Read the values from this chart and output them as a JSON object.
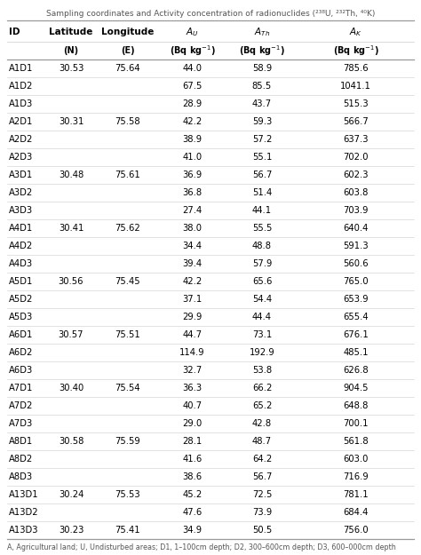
{
  "title": "Sampling coordinates and Activity concentration of radionuclides (²³⁸U, ²³²Th, ⁴⁰K)",
  "rows": [
    [
      "A1D1",
      "30.53",
      "75.64",
      "44.0",
      "58.9",
      "785.6"
    ],
    [
      "A1D2",
      "",
      "",
      "67.5",
      "85.5",
      "1041.1"
    ],
    [
      "A1D3",
      "",
      "",
      "28.9",
      "43.7",
      "515.3"
    ],
    [
      "A2D1",
      "30.31",
      "75.58",
      "42.2",
      "59.3",
      "566.7"
    ],
    [
      "A2D2",
      "",
      "",
      "38.9",
      "57.2",
      "637.3"
    ],
    [
      "A2D3",
      "",
      "",
      "41.0",
      "55.1",
      "702.0"
    ],
    [
      "A3D1",
      "30.48",
      "75.61",
      "36.9",
      "56.7",
      "602.3"
    ],
    [
      "A3D2",
      "",
      "",
      "36.8",
      "51.4",
      "603.8"
    ],
    [
      "A3D3",
      "",
      "",
      "27.4",
      "44.1",
      "703.9"
    ],
    [
      "A4D1",
      "30.41",
      "75.62",
      "38.0",
      "55.5",
      "640.4"
    ],
    [
      "A4D2",
      "",
      "",
      "34.4",
      "48.8",
      "591.3"
    ],
    [
      "A4D3",
      "",
      "",
      "39.4",
      "57.9",
      "560.6"
    ],
    [
      "A5D1",
      "30.56",
      "75.45",
      "42.2",
      "65.6",
      "765.0"
    ],
    [
      "A5D2",
      "",
      "",
      "37.1",
      "54.4",
      "653.9"
    ],
    [
      "A5D3",
      "",
      "",
      "29.9",
      "44.4",
      "655.4"
    ],
    [
      "A6D1",
      "30.57",
      "75.51",
      "44.7",
      "73.1",
      "676.1"
    ],
    [
      "A6D2",
      "",
      "",
      "114.9",
      "192.9",
      "485.1"
    ],
    [
      "A6D3",
      "",
      "",
      "32.7",
      "53.8",
      "626.8"
    ],
    [
      "A7D1",
      "30.40",
      "75.54",
      "36.3",
      "66.2",
      "904.5"
    ],
    [
      "A7D2",
      "",
      "",
      "40.7",
      "65.2",
      "648.8"
    ],
    [
      "A7D3",
      "",
      "",
      "29.0",
      "42.8",
      "700.1"
    ],
    [
      "A8D1",
      "30.58",
      "75.59",
      "28.1",
      "48.7",
      "561.8"
    ],
    [
      "A8D2",
      "",
      "",
      "41.6",
      "64.2",
      "603.0"
    ],
    [
      "A8D3",
      "",
      "",
      "38.6",
      "56.7",
      "716.9"
    ],
    [
      "A13D1",
      "30.24",
      "75.53",
      "45.2",
      "72.5",
      "781.1"
    ],
    [
      "A13D2",
      "",
      "",
      "47.6",
      "73.9",
      "684.4"
    ],
    [
      "A13D3",
      "30.23",
      "75.41",
      "34.9",
      "50.5",
      "756.0"
    ]
  ],
  "footnote": "A, Agricultural land; U, Undisturbed areas; D1, 1–100cm depth; D2, 300–600cm depth; D3, 600–000cm depth",
  "bg_color": "#ffffff",
  "text_color": "#000000",
  "title_color": "#555555",
  "line_color_strong": "#999999",
  "line_color_weak": "#cccccc"
}
